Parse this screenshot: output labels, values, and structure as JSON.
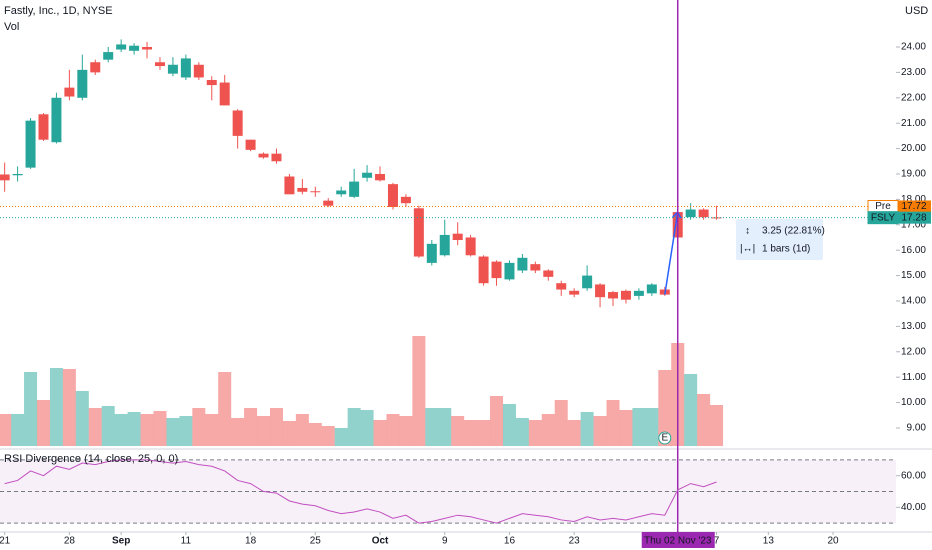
{
  "chart_data": [
    {
      "type": "candlestick",
      "title": "Fastly, Inc., 1D, NYSE",
      "volume_label": "Vol",
      "currency": "USD",
      "up_color": "#26a69a",
      "down_color": "#ef5350",
      "open": [
        18.98,
        18.95,
        19.25,
        21.35,
        20.25,
        22.4,
        22.0,
        23.4,
        23.5,
        23.9,
        23.85,
        24.0,
        23.4,
        22.95,
        22.8,
        23.3,
        22.7,
        22.6,
        21.5,
        20.35,
        19.8,
        19.8,
        18.9,
        18.45,
        18.32,
        17.95,
        18.2,
        18.1,
        18.85,
        19.0,
        18.6,
        18.1,
        17.65,
        15.5,
        15.8,
        16.65,
        16.5,
        15.75,
        15.55,
        14.85,
        15.2,
        15.45,
        15.2,
        14.7,
        14.4,
        14.5,
        14.65,
        14.35,
        14.4,
        14.2,
        14.3,
        14.45,
        17.5,
        17.3,
        17.6,
        17.29
      ],
      "high": [
        19.45,
        19.3,
        21.2,
        21.4,
        22.2,
        23.1,
        23.7,
        23.5,
        24.0,
        24.3,
        24.15,
        24.2,
        23.6,
        23.6,
        23.7,
        23.4,
        22.85,
        22.9,
        21.55,
        20.35,
        19.85,
        20.0,
        19.0,
        18.8,
        18.5,
        18.05,
        18.5,
        19.2,
        19.35,
        19.3,
        18.65,
        18.2,
        17.75,
        16.4,
        17.2,
        17.1,
        16.6,
        15.8,
        15.6,
        15.6,
        15.85,
        15.55,
        15.25,
        14.8,
        14.5,
        15.4,
        14.7,
        14.4,
        14.45,
        14.5,
        14.7,
        14.55,
        17.55,
        17.85,
        17.65,
        17.75
      ],
      "low": [
        18.3,
        18.7,
        19.2,
        20.3,
        20.2,
        21.9,
        21.9,
        22.9,
        23.4,
        23.8,
        23.7,
        23.55,
        23.1,
        22.85,
        22.7,
        22.7,
        21.9,
        21.7,
        20.0,
        19.9,
        19.6,
        19.4,
        18.2,
        18.2,
        18.1,
        17.7,
        18.1,
        18.05,
        18.7,
        18.7,
        17.6,
        17.7,
        15.7,
        15.4,
        15.75,
        16.2,
        15.75,
        14.6,
        14.6,
        14.8,
        15.1,
        15.1,
        14.8,
        14.2,
        14.15,
        14.4,
        13.75,
        13.8,
        13.9,
        14.05,
        14.2,
        14.2,
        16.4,
        17.2,
        17.2,
        17.2
      ],
      "close": [
        18.75,
        19.0,
        21.1,
        20.35,
        22.0,
        22.05,
        23.1,
        23.0,
        23.8,
        24.1,
        24.05,
        23.9,
        23.25,
        23.3,
        23.55,
        22.8,
        22.5,
        21.7,
        20.5,
        19.95,
        19.65,
        19.5,
        18.2,
        18.3,
        18.3,
        17.75,
        18.35,
        18.7,
        19.05,
        18.75,
        17.7,
        17.85,
        15.75,
        16.25,
        16.6,
        16.4,
        15.8,
        14.7,
        14.9,
        15.5,
        15.7,
        15.2,
        14.95,
        14.45,
        14.25,
        15.0,
        14.15,
        14.1,
        14.05,
        14.4,
        14.65,
        14.25,
        16.5,
        17.6,
        17.3,
        17.28
      ],
      "volume": [
        32,
        32,
        74,
        46,
        78,
        77,
        55,
        38,
        40,
        32,
        34,
        32,
        35,
        28,
        30,
        38,
        32,
        74,
        28,
        38,
        30,
        38,
        25,
        32,
        23,
        20,
        18,
        38,
        36,
        26,
        32,
        30,
        110,
        38,
        38,
        30,
        26,
        26,
        50,
        42,
        28,
        26,
        32,
        46,
        26,
        34,
        30,
        46,
        36,
        38,
        38,
        76,
        103,
        72,
        52,
        41
      ],
      "volume_ylim": [
        0,
        446
      ],
      "ylim": [
        8.29,
        25.85
      ],
      "yticks": [
        {
          "value": 9,
          "label": "9.00"
        },
        {
          "value": 10,
          "label": "10.00"
        },
        {
          "value": 11,
          "label": "11.00"
        },
        {
          "value": 12,
          "label": "12.00"
        },
        {
          "value": 13,
          "label": "13.00"
        },
        {
          "value": 14,
          "label": "14.00"
        },
        {
          "value": 15,
          "label": "15.00"
        },
        {
          "value": 16,
          "label": "16.00"
        },
        {
          "value": 17,
          "label": "17.00"
        },
        {
          "value": 18,
          "label": "18.00"
        },
        {
          "value": 19,
          "label": "19.00"
        },
        {
          "value": 20,
          "label": "20.00"
        },
        {
          "value": 21,
          "label": "21.00"
        },
        {
          "value": 22,
          "label": "22.00"
        },
        {
          "value": 23,
          "label": "23.00"
        },
        {
          "value": 24,
          "label": "24.00"
        }
      ],
      "xlim": [
        -0.36,
        66.7
      ],
      "xticks": [
        {
          "value": 0,
          "label": "21"
        },
        {
          "value": 5,
          "label": "28"
        },
        {
          "value": 9,
          "label": "Sep"
        },
        {
          "value": 14,
          "label": "11"
        },
        {
          "value": 19,
          "label": "18"
        },
        {
          "value": 24,
          "label": "25"
        },
        {
          "value": 29,
          "label": "Oct"
        },
        {
          "value": 34,
          "label": "9"
        },
        {
          "value": 39,
          "label": "16"
        },
        {
          "value": 44,
          "label": "23"
        },
        {
          "value": 55,
          "label": "7"
        },
        {
          "value": 59,
          "label": "13"
        },
        {
          "value": 64,
          "label": "20"
        }
      ],
      "premarket": {
        "label": "Pre",
        "value": 17.72,
        "color": "#f57c00"
      },
      "last": {
        "label": "FSLY",
        "value": 17.28,
        "color": "#26a69a"
      },
      "measure": {
        "from_x": 51,
        "to_x": 52,
        "change": "3.25 (22.81%)",
        "bars": "1 bars (1d)"
      },
      "crosshair": {
        "x": 52,
        "label": "Thu 02 Nov '23",
        "color": "#9c27b0"
      },
      "events": [
        {
          "x": 51,
          "label": "E"
        }
      ]
    },
    {
      "type": "line",
      "title": "RSI Divergence (14, close, 25, 0, 0)",
      "color": "#c04fc0",
      "values": [
        55,
        57,
        63,
        60,
        66,
        64,
        68,
        67,
        69,
        70,
        70,
        70,
        69,
        68,
        69,
        67,
        66,
        63,
        57,
        55,
        50,
        49,
        44,
        42,
        41,
        38,
        36,
        37,
        39,
        37,
        33,
        35,
        30,
        31,
        33,
        35,
        34,
        32,
        30,
        33,
        36,
        35,
        34,
        32,
        31,
        34,
        32,
        33,
        32,
        34,
        36,
        35,
        51,
        55,
        53,
        56
      ],
      "ylim": [
        25,
        75
      ],
      "bands": [
        70,
        50,
        30
      ],
      "yticks": [
        {
          "value": 40,
          "label": "40.00"
        },
        {
          "value": 60,
          "label": "60.00"
        }
      ]
    }
  ]
}
